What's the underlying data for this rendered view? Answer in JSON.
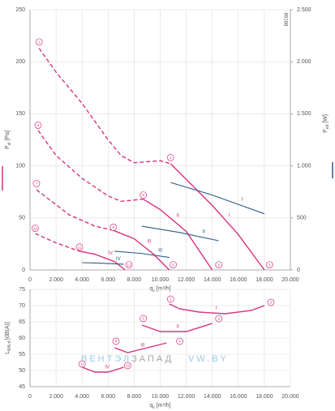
{
  "chart_data": [
    {
      "type": "line",
      "x_label": [
        "q",
        "v",
        " [m³/h]"
      ],
      "y_label": [
        "P",
        "sf",
        " [Pa]"
      ],
      "y2_label": [
        "P",
        "ed",
        " [W]"
      ],
      "side_text": "89188",
      "xlim": [
        0,
        20000
      ],
      "xticks": [
        0,
        {
          "value": 2000,
          "label": "2.000"
        },
        {
          "value": 4000,
          "label": "4.000"
        },
        {
          "value": 6000,
          "label": "6.000"
        },
        {
          "value": 8000,
          "label": "8.000"
        },
        {
          "value": 10000,
          "label": "10.000"
        },
        {
          "value": 12000,
          "label": "12.000"
        },
        {
          "value": 14000,
          "label": "14.000"
        },
        {
          "value": 16000,
          "label": "16.000"
        },
        {
          "value": 18000,
          "label": "18.000"
        },
        {
          "value": 20000,
          "label": "20.000"
        }
      ],
      "ylim": [
        0,
        250
      ],
      "yticks": [
        0,
        50,
        100,
        150,
        200,
        250
      ],
      "y2lim": [
        0,
        2500
      ],
      "y2ticks": [
        0,
        500,
        {
          "value": 1000,
          "label": "1.000"
        },
        {
          "value": 1500,
          "label": "1.500"
        },
        {
          "value": 2000,
          "label": "2.000"
        },
        {
          "value": 2500,
          "label": "2.500"
        }
      ],
      "grid": true,
      "series": [
        {
          "color": "#d6337f",
          "line_style": "dashed",
          "x": [
            700,
            2000,
            4000,
            6000,
            7000,
            8000,
            9000,
            10000,
            10800
          ],
          "values": [
            213,
            190,
            160,
            125,
            110,
            103,
            104,
            105,
            102
          ]
        },
        {
          "name": "I",
          "color": "#d6337f",
          "line_style": "solid",
          "x": [
            10800,
            12000,
            14000,
            16000,
            18000
          ],
          "values": [
            102,
            87,
            62,
            34,
            0
          ]
        },
        {
          "color": "#d6337f",
          "line_style": "dashed",
          "x": [
            620,
            2000,
            4000,
            6000,
            7000,
            8700
          ],
          "values": [
            134,
            110,
            88,
            71,
            66,
            68
          ]
        },
        {
          "name": "II",
          "color": "#d6337f",
          "line_style": "solid",
          "x": [
            8700,
            10000,
            12000,
            14000
          ],
          "values": [
            68,
            58,
            37,
            0
          ]
        },
        {
          "color": "#d6337f",
          "line_style": "dashed",
          "x": [
            500,
            3000,
            5000,
            6400
          ],
          "values": [
            77,
            53,
            42,
            38
          ]
        },
        {
          "name": "III",
          "color": "#d6337f",
          "line_style": "solid",
          "x": [
            6400,
            8000,
            9500,
            10700
          ],
          "values": [
            38,
            30,
            15,
            0
          ]
        },
        {
          "color": "#d6337f",
          "line_style": "dashed",
          "x": [
            400,
            2000,
            3800
          ],
          "values": [
            35,
            26,
            18
          ]
        },
        {
          "name": "IV",
          "color": "#d6337f",
          "line_style": "solid",
          "x": [
            3800,
            5000,
            6500,
            7300
          ],
          "values": [
            18,
            15,
            8,
            0
          ]
        },
        {
          "name": "I",
          "axis": "y2",
          "color": "#2e5b8a",
          "line_style": "solid",
          "x": [
            10800,
            14000,
            18000
          ],
          "values": [
            840,
            720,
            540
          ]
        },
        {
          "name": "II",
          "axis": "y2",
          "color": "#2e5b8a",
          "line_style": "solid",
          "x": [
            8600,
            11500,
            14500
          ],
          "values": [
            420,
            360,
            280
          ]
        },
        {
          "name": "III",
          "axis": "y2",
          "color": "#2e5b8a",
          "line_style": "solid",
          "x": [
            6500,
            8500,
            10700
          ],
          "values": [
            180,
            160,
            120
          ]
        },
        {
          "name": "IV",
          "axis": "y2",
          "color": "#2e5b8a",
          "line_style": "solid",
          "x": [
            4000,
            5500,
            7200
          ],
          "values": [
            70,
            65,
            55
          ]
        }
      ],
      "markers": [
        {
          "label": "1",
          "x": 700,
          "y": 219
        },
        {
          "label": "2",
          "x": 10800,
          "y": 108
        },
        {
          "label": "3",
          "x": 18400,
          "y": 5
        },
        {
          "label": "4",
          "x": 620,
          "y": 139
        },
        {
          "label": "5",
          "x": 8700,
          "y": 72
        },
        {
          "label": "6",
          "x": 14500,
          "y": 5
        },
        {
          "label": "7",
          "x": 500,
          "y": 83
        },
        {
          "label": "8",
          "x": 6400,
          "y": 41
        },
        {
          "label": "9",
          "x": 11000,
          "y": 5
        },
        {
          "label": "10",
          "x": 400,
          "y": 40
        },
        {
          "label": "11",
          "x": 3800,
          "y": 22
        },
        {
          "label": "12",
          "x": 7600,
          "y": 5
        }
      ]
    },
    {
      "type": "line",
      "x_label": [
        "q",
        "v",
        " [m³/h]"
      ],
      "y_label": [
        "L",
        "WA,d",
        " [dB(A)]"
      ],
      "watermark": [
        "ВЕНТЭЛ",
        "ЗАПАД",
        "VW.BY"
      ],
      "xlim": [
        0,
        20000
      ],
      "xticks": [
        0,
        {
          "value": 2000,
          "label": "2.000"
        },
        {
          "value": 4000,
          "label": "4.000"
        },
        {
          "value": 6000,
          "label": "6.000"
        },
        {
          "value": 8000,
          "label": "8.000"
        },
        {
          "value": 10000,
          "label": "10.000"
        },
        {
          "value": 12000,
          "label": "12.000"
        },
        {
          "value": 14000,
          "label": "14.000"
        },
        {
          "value": 16000,
          "label": "16.000"
        },
        {
          "value": 18000,
          "label": "18.000"
        },
        {
          "value": 20000,
          "label": "20.000"
        }
      ],
      "ylim": [
        45,
        75
      ],
      "yticks": [
        45,
        50,
        55,
        60,
        65,
        70,
        75
      ],
      "grid": true,
      "series": [
        {
          "name": "I",
          "color": "#d6337f",
          "line_style": "solid",
          "x": [
            10700,
            11500,
            13000,
            15000,
            17000,
            18000
          ],
          "values": [
            70.5,
            69,
            68,
            67.5,
            68.5,
            70
          ]
        },
        {
          "name": "II",
          "color": "#d6337f",
          "line_style": "solid",
          "x": [
            8600,
            10000,
            12000,
            14000
          ],
          "values": [
            64,
            62,
            62,
            64.5
          ]
        },
        {
          "name": "III",
          "color": "#d6337f",
          "line_style": "solid",
          "x": [
            6500,
            7500,
            9000,
            10500
          ],
          "values": [
            57,
            55.5,
            57,
            58.5
          ]
        },
        {
          "name": "IV",
          "color": "#d6337f",
          "line_style": "solid",
          "x": [
            4000,
            5000,
            6000,
            7200
          ],
          "values": [
            51,
            49.5,
            49.5,
            51
          ]
        }
      ],
      "markers": [
        {
          "label": "2",
          "x": 10800,
          "y": 72
        },
        {
          "label": "3",
          "x": 18500,
          "y": 71
        },
        {
          "label": "5",
          "x": 8700,
          "y": 66
        },
        {
          "label": "6",
          "x": 14500,
          "y": 66
        },
        {
          "label": "8",
          "x": 6600,
          "y": 59
        },
        {
          "label": "9",
          "x": 11500,
          "y": 59
        },
        {
          "label": "11",
          "x": 4000,
          "y": 52
        },
        {
          "label": "12",
          "x": 7500,
          "y": 51.5
        }
      ]
    }
  ]
}
